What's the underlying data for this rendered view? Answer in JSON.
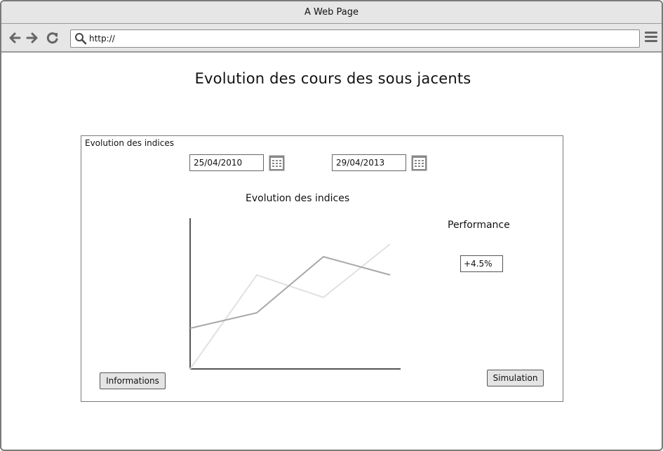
{
  "window": {
    "title": "A Web Page"
  },
  "toolbar": {
    "url": "http://",
    "icons": [
      "back-arrow-icon",
      "forward-arrow-icon",
      "reload-icon",
      "search-icon",
      "hamburger-menu-icon"
    ]
  },
  "page": {
    "title": "Evolution des cours des sous jacents"
  },
  "panel": {
    "label": "Evolution des indices",
    "start_date": "25/04/2010",
    "end_date": "29/04/2013",
    "calendar_icon": "calendar-icon"
  },
  "chart": {
    "title": "Evolution des indices"
  },
  "chart_data": {
    "type": "line",
    "title": "Evolution des indices",
    "xlabel": "",
    "ylabel": "",
    "x": [
      0,
      1,
      2,
      3
    ],
    "xlim": [
      0,
      3
    ],
    "ylim": [
      0,
      10
    ],
    "grid": false,
    "series": [
      {
        "values": [
          2.9,
          4.0,
          8.0,
          6.7
        ],
        "color": "#a8a8a8"
      },
      {
        "values": [
          0.0,
          6.7,
          5.1,
          8.9
        ],
        "color": "#e1e1e1"
      }
    ]
  },
  "performance": {
    "label": "Performance",
    "value": "+4.5%"
  },
  "buttons": {
    "informations": "Informations",
    "simulation": "Simulation"
  }
}
